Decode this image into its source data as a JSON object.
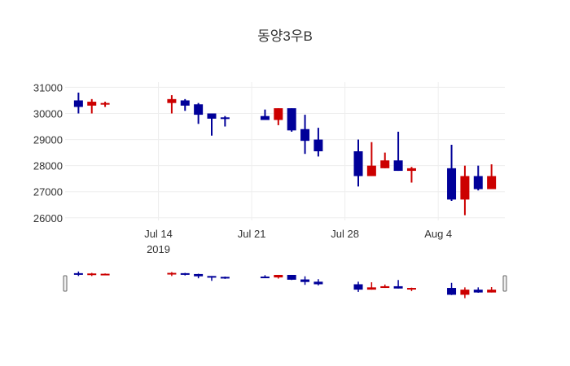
{
  "chart_data": {
    "type": "candlestick",
    "title": "동양3우B",
    "colors": {
      "up": "#cc0000",
      "down": "#000099",
      "grid": "#eeeeee"
    },
    "ylim": [
      25900,
      31200
    ],
    "yticks": [
      26000,
      27000,
      28000,
      29000,
      30000,
      31000
    ],
    "xlim": [
      "2019-07-07",
      "2019-08-09"
    ],
    "xticks": [
      {
        "date": "2019-07-14",
        "label": "Jul 14",
        "sublabel": "2019"
      },
      {
        "date": "2019-07-21",
        "label": "Jul 21",
        "sublabel": ""
      },
      {
        "date": "2019-07-28",
        "label": "Jul 28",
        "sublabel": ""
      },
      {
        "date": "2019-08-04",
        "label": "Aug 4",
        "sublabel": ""
      }
    ],
    "candles": [
      {
        "date": "2019-07-08",
        "open": 30500,
        "high": 30800,
        "low": 30000,
        "close": 30250
      },
      {
        "date": "2019-07-09",
        "open": 30300,
        "high": 30550,
        "low": 30000,
        "close": 30450
      },
      {
        "date": "2019-07-10",
        "open": 30350,
        "high": 30450,
        "low": 30250,
        "close": 30400
      },
      {
        "date": "2019-07-15",
        "open": 30400,
        "high": 30700,
        "low": 30000,
        "close": 30550
      },
      {
        "date": "2019-07-16",
        "open": 30500,
        "high": 30550,
        "low": 30100,
        "close": 30300
      },
      {
        "date": "2019-07-17",
        "open": 30350,
        "high": 30400,
        "low": 29600,
        "close": 29950
      },
      {
        "date": "2019-07-18",
        "open": 30000,
        "high": 30000,
        "low": 29150,
        "close": 29800
      },
      {
        "date": "2019-07-19",
        "open": 29850,
        "high": 29900,
        "low": 29500,
        "close": 29800
      },
      {
        "date": "2019-07-22",
        "open": 29900,
        "high": 30150,
        "low": 29750,
        "close": 29750
      },
      {
        "date": "2019-07-23",
        "open": 29750,
        "high": 30200,
        "low": 29550,
        "close": 30200
      },
      {
        "date": "2019-07-24",
        "open": 30200,
        "high": 30200,
        "low": 29300,
        "close": 29350
      },
      {
        "date": "2019-07-25",
        "open": 29400,
        "high": 29950,
        "low": 28450,
        "close": 28950
      },
      {
        "date": "2019-07-26",
        "open": 29000,
        "high": 29450,
        "low": 28350,
        "close": 28550
      },
      {
        "date": "2019-07-29",
        "open": 28550,
        "high": 29000,
        "low": 27200,
        "close": 27600
      },
      {
        "date": "2019-07-30",
        "open": 27600,
        "high": 28900,
        "low": 27600,
        "close": 28000
      },
      {
        "date": "2019-07-31",
        "open": 27900,
        "high": 28500,
        "low": 27900,
        "close": 28200
      },
      {
        "date": "2019-08-01",
        "open": 28200,
        "high": 29300,
        "low": 27800,
        "close": 27800
      },
      {
        "date": "2019-08-02",
        "open": 27800,
        "high": 27950,
        "low": 27350,
        "close": 27900
      },
      {
        "date": "2019-08-05",
        "open": 27900,
        "high": 28800,
        "low": 26650,
        "close": 26700
      },
      {
        "date": "2019-08-06",
        "open": 26700,
        "high": 28000,
        "low": 26100,
        "close": 27600
      },
      {
        "date": "2019-08-07",
        "open": 27600,
        "high": 28000,
        "low": 27050,
        "close": 27100
      },
      {
        "date": "2019-08-08",
        "open": 27100,
        "high": 28050,
        "low": 27100,
        "close": 27600
      }
    ]
  }
}
